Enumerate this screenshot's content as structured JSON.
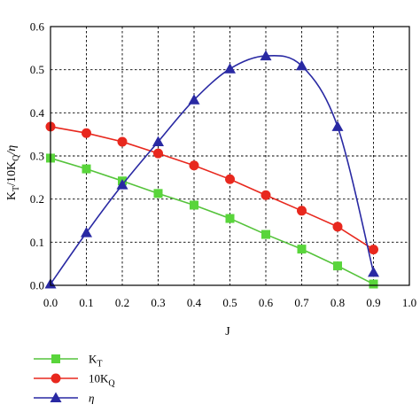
{
  "chart_data": {
    "type": "line",
    "xlabel": "J",
    "ylabel": {
      "base1": "K",
      "sub1": "T",
      "mid": "/10K",
      "sub2": "Q",
      "tail": "/η"
    },
    "xlim": [
      0.0,
      1.0
    ],
    "ylim": [
      0.0,
      0.6
    ],
    "x_ticks": [
      "0.0",
      "0.1",
      "0.2",
      "0.3",
      "0.4",
      "0.5",
      "0.6",
      "0.7",
      "0.8",
      "0.9",
      "1.0"
    ],
    "y_ticks": [
      "0.0",
      "0.1",
      "0.2",
      "0.3",
      "0.4",
      "0.5",
      "0.6"
    ],
    "grid": true,
    "legend_position": "bottom-left, below plot",
    "series": [
      {
        "name": "KT",
        "label_base": "K",
        "label_sub": "T",
        "marker": "square",
        "color": "#55c33b",
        "marker_color": "#59d53b",
        "smooth": false,
        "x": [
          0.0,
          0.1,
          0.2,
          0.3,
          0.4,
          0.5,
          0.6,
          0.7,
          0.8,
          0.9
        ],
        "y": [
          0.295,
          0.27,
          0.242,
          0.213,
          0.186,
          0.155,
          0.118,
          0.084,
          0.045,
          0.003
        ]
      },
      {
        "name": "10KQ",
        "label_base": "10K",
        "label_sub": "Q",
        "marker": "circle",
        "color": "#e8281e",
        "marker_color": "#e8281e",
        "smooth": false,
        "x": [
          0.0,
          0.1,
          0.2,
          0.3,
          0.4,
          0.5,
          0.6,
          0.7,
          0.8,
          0.9
        ],
        "y": [
          0.368,
          0.353,
          0.333,
          0.306,
          0.278,
          0.246,
          0.209,
          0.173,
          0.136,
          0.083
        ]
      },
      {
        "name": "η",
        "label_base": "η",
        "label_sub": "",
        "marker": "triangle",
        "color": "#2929a3",
        "marker_color": "#2929a3",
        "smooth": true,
        "x": [
          0.0,
          0.1,
          0.2,
          0.3,
          0.4,
          0.5,
          0.6,
          0.7,
          0.8,
          0.9
        ],
        "y": [
          0.003,
          0.122,
          0.233,
          0.333,
          0.43,
          0.502,
          0.532,
          0.509,
          0.368,
          0.03
        ]
      }
    ]
  }
}
